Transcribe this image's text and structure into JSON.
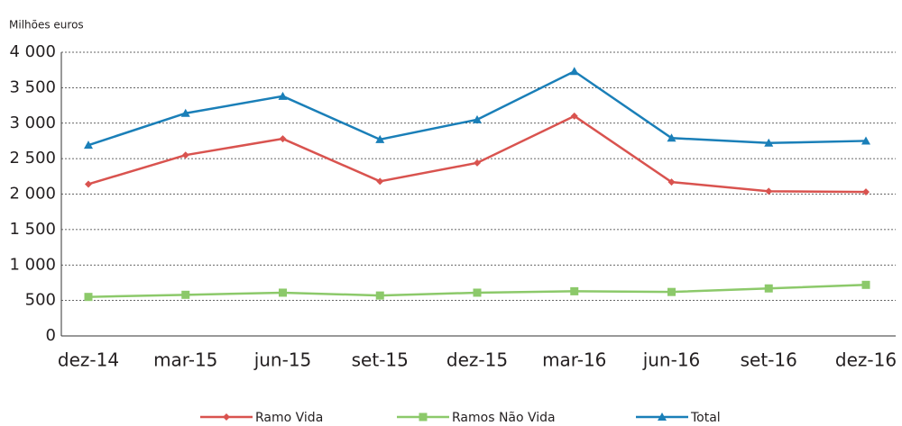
{
  "chart_data": {
    "type": "line",
    "y_axis_label": "Milhões euros",
    "categories": [
      "dez-14",
      "mar-15",
      "jun-15",
      "set-15",
      "dez-15",
      "mar-16",
      "jun-16",
      "set-16",
      "dez-16"
    ],
    "series": [
      {
        "name": "Ramo Vida",
        "color": "#d9534f",
        "marker": "diamond",
        "values": [
          2140,
          2550,
          2780,
          2180,
          2440,
          3100,
          2170,
          2040,
          2030
        ]
      },
      {
        "name": "Ramos Não Vida",
        "color": "#8cc96a",
        "marker": "square",
        "values": [
          550,
          580,
          610,
          570,
          610,
          630,
          620,
          670,
          720
        ]
      },
      {
        "name": "Total",
        "color": "#1a7fb8",
        "marker": "triangle",
        "values": [
          2690,
          3140,
          3380,
          2770,
          3050,
          3730,
          2790,
          2720,
          2750
        ]
      }
    ],
    "ylim": [
      0,
      4000
    ],
    "yticks": [
      0,
      500,
      {
        "value": 1000,
        "label": "1 000"
      },
      {
        "value": 1500,
        "label": "1 500"
      },
      {
        "value": 2000,
        "label": "2 000"
      },
      {
        "value": 2500,
        "label": "2 500"
      },
      {
        "value": 3000,
        "label": "3 000"
      },
      {
        "value": 3500,
        "label": "3 500"
      },
      {
        "value": 4000,
        "label": "4 000"
      }
    ],
    "grid": true,
    "legend": "bottom"
  }
}
